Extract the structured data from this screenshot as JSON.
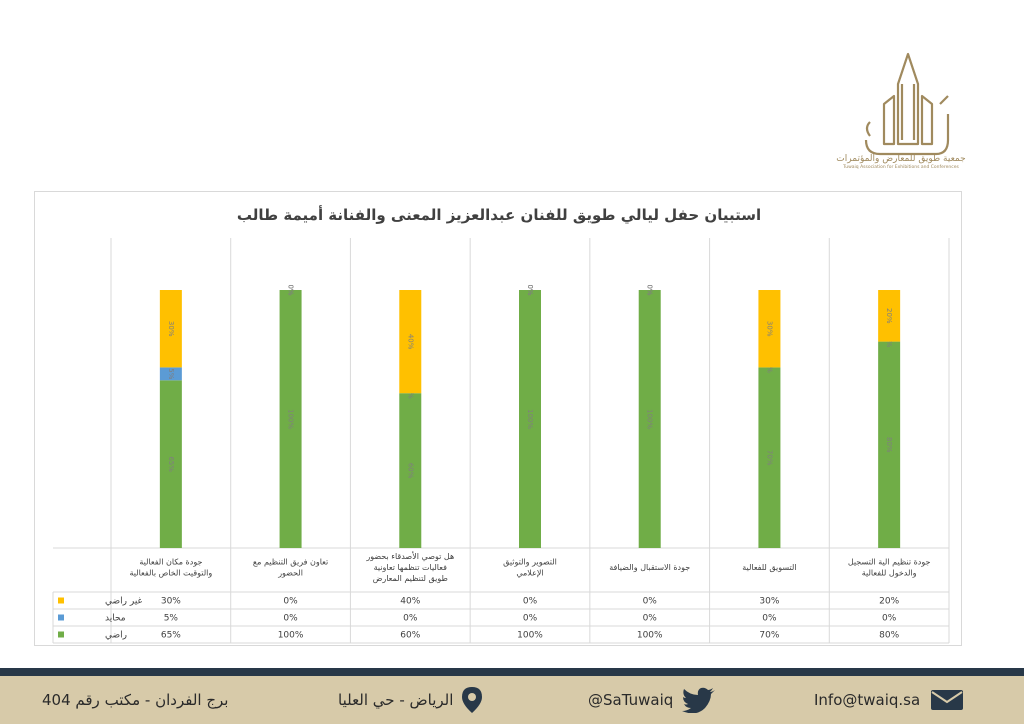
{
  "header": {
    "logo_text_ar": "جمعية طويق للمعارض والمؤتمرات",
    "logo_text_en": "Tuwaiq Association for Exhibitions and Conferences"
  },
  "chart_data": {
    "type": "bar",
    "stacked": true,
    "title": "استبيان حفل ليالي طويق للفنان عبدالعزيز المعنى والفنانة أميمة طالب",
    "categories": [
      "جودة تنظيم الية التسجيل والدخول للفعالية",
      "التسويق للفعالية",
      "جودة الاستقبال والضيافة",
      "التصوير والتوثيق الإعلامي",
      "هل توصي الأصدقاء بحضور فعاليات تنظمها تعاونية طويق لتنظيم المعارض",
      "تعاون فريق التنظيم مع الحضور",
      "جودة مكان الفعالية والتوقيت الخاص بالفعالية"
    ],
    "series": [
      {
        "name": "راضي",
        "color": "#70ad47",
        "values": [
          80,
          70,
          100,
          100,
          60,
          100,
          65
        ]
      },
      {
        "name": "محايد",
        "color": "#5b9bd5",
        "values": [
          0,
          0,
          0,
          0,
          0,
          0,
          5
        ]
      },
      {
        "name": "غير راضي",
        "color": "#ffc000",
        "values": [
          20,
          30,
          0,
          0,
          40,
          0,
          30
        ]
      }
    ],
    "data_table": true,
    "grid": true,
    "legend": "data-table"
  },
  "footer": {
    "email": "Info@twaiq.sa",
    "twitter": "@SaTuwaiq",
    "location": "الرياض - حي العليا",
    "address": "برج الفردان - مكتب رقم 404"
  },
  "colors": {
    "footer_bg": "#d7caa9",
    "footer_bar": "#283848",
    "gold": "#a08a5e"
  }
}
